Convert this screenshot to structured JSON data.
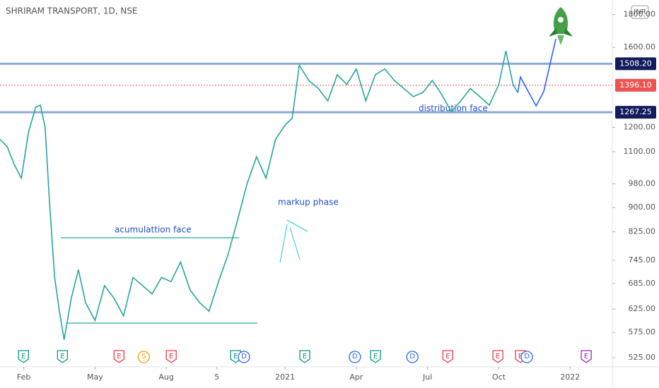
{
  "chart_data": {
    "type": "line",
    "title": "SHRIRAM TRANSPORT, 1D, NSE",
    "currency": "INR",
    "log_scale": true,
    "xlim": [
      0,
      25.6
    ],
    "xticks": [
      {
        "value": 1,
        "label": "Feb"
      },
      {
        "value": 4,
        "label": "May"
      },
      {
        "value": 7,
        "label": "Aug"
      },
      {
        "value": 9.13,
        "label": "5"
      },
      {
        "value": 12,
        "label": "2021"
      },
      {
        "value": 15,
        "label": "Apr"
      },
      {
        "value": 18,
        "label": "Jul"
      },
      {
        "value": 21,
        "label": "Oct"
      },
      {
        "value": 24,
        "label": "2022"
      }
    ],
    "ylim": [
      508,
      1896
    ],
    "yticks": [
      {
        "value": 1800,
        "label": "1800.00"
      },
      {
        "value": 1600,
        "label": "1600.00"
      },
      {
        "value": 1200,
        "label": "1200.00"
      },
      {
        "value": 1100,
        "label": "1100.00"
      },
      {
        "value": 980,
        "label": "980.00"
      },
      {
        "value": 900,
        "label": "900.00"
      },
      {
        "value": 825,
        "label": "825.00"
      },
      {
        "value": 745,
        "label": "745.00"
      },
      {
        "value": 685,
        "label": "685.00"
      },
      {
        "value": 625,
        "label": "625.00"
      },
      {
        "value": 575,
        "label": "575.00"
      },
      {
        "value": 525,
        "label": "525.00"
      }
    ],
    "levels": [
      {
        "value": 1508.2,
        "label": "1508.20",
        "color": "#8ea6e0",
        "label_color": "#131d5e"
      },
      {
        "value": 1396.1,
        "label": "1396.10",
        "color": "#ef5350",
        "label_color": "#ef5350"
      },
      {
        "value": 1267.25,
        "label": "1267.25",
        "color": "#8ea6e0",
        "label_color": "#131d5e"
      }
    ],
    "series": [
      {
        "color": "#26a69a",
        "x": [
          0.0,
          0.3,
          0.6,
          0.9,
          1.2,
          1.5,
          1.7,
          1.9,
          2.1,
          2.3,
          2.5,
          2.7,
          3.0,
          3.3,
          3.6,
          4.0,
          4.4,
          4.8,
          5.2,
          5.6,
          6.0,
          6.4,
          6.8,
          7.2,
          7.6,
          8.0,
          8.4,
          8.8,
          9.2,
          9.6,
          10.0,
          10.4,
          10.8,
          11.2,
          11.6,
          12.0,
          12.3,
          12.6,
          13.0,
          13.4,
          13.8,
          14.2,
          14.6,
          15.0,
          15.4,
          15.8,
          16.2,
          16.6,
          17.0,
          17.4,
          17.8,
          18.2,
          18.6,
          19.0,
          19.4,
          19.8,
          20.2,
          20.6,
          21.0,
          21.3,
          21.6,
          21.8
        ],
        "values": [
          1150,
          1120,
          1050,
          1000,
          1180,
          1290,
          1300,
          1200,
          900,
          700,
          620,
          560,
          650,
          720,
          640,
          600,
          680,
          650,
          610,
          700,
          680,
          660,
          700,
          690,
          740,
          670,
          640,
          620,
          690,
          760,
          860,
          980,
          1080,
          1000,
          1150,
          1210,
          1240,
          1500,
          1420,
          1380,
          1320,
          1450,
          1400,
          1480,
          1320,
          1450,
          1480,
          1420,
          1380,
          1340,
          1360,
          1420,
          1350,
          1270,
          1320,
          1380,
          1340,
          1300,
          1400,
          1580,
          1400,
          1360
        ]
      },
      {
        "color": "#2962ff",
        "x": [
          21.8,
          21.91,
          22.57,
          22.89,
          23.4
        ],
        "values": [
          1360,
          1438,
          1296,
          1365,
          1649
        ]
      }
    ],
    "annotations": [
      "acumulattion face",
      "markup phase",
      "distribution face"
    ],
    "events": [
      {
        "label": "E",
        "x": 0.99,
        "color": "#089981"
      },
      {
        "label": "E",
        "x": 2.63,
        "color": "#089981"
      },
      {
        "label": "E",
        "x": 5.01,
        "color": "#f23645"
      },
      {
        "label": "S",
        "x": 6.05,
        "color": "#ff9800"
      },
      {
        "label": "E",
        "x": 7.21,
        "color": "#f23645"
      },
      {
        "label": "E",
        "x": 9.92,
        "color": "#089981"
      },
      {
        "label": "D",
        "x": 10.27,
        "color": "#2962ff"
      },
      {
        "label": "E",
        "x": 12.83,
        "color": "#089981"
      },
      {
        "label": "D",
        "x": 14.94,
        "color": "#2962ff"
      },
      {
        "label": "E",
        "x": 15.81,
        "color": "#089981"
      },
      {
        "label": "D",
        "x": 17.36,
        "color": "#2962ff"
      },
      {
        "label": "E",
        "x": 18.85,
        "color": "#f23645"
      },
      {
        "label": "E",
        "x": 20.96,
        "color": "#f23645"
      },
      {
        "label": "E",
        "x": 21.91,
        "color": "#f23645"
      },
      {
        "label": "D",
        "x": 22.18,
        "color": "#2962ff"
      },
      {
        "label": "E",
        "x": 24.68,
        "color": "#9c27b0"
      }
    ]
  }
}
